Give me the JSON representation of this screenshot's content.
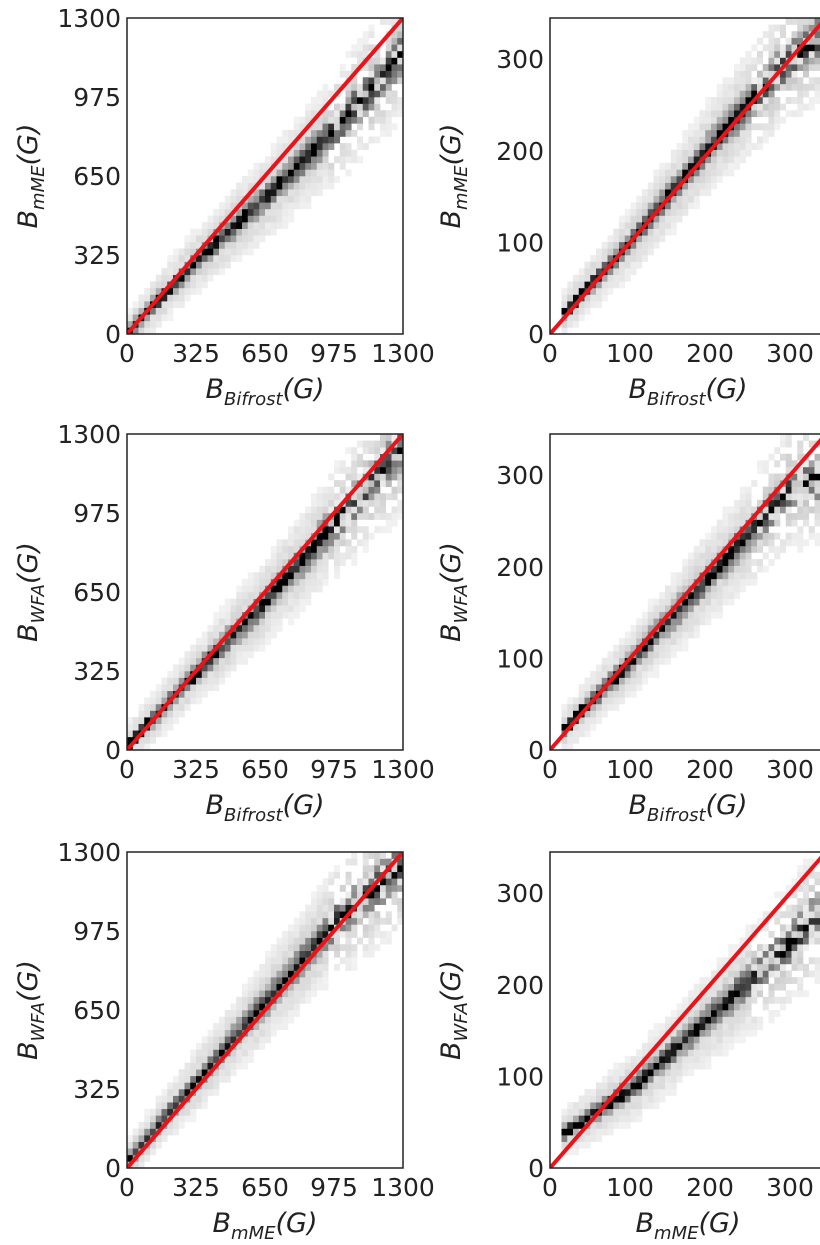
{
  "colors": {
    "identity_line": "#e8141a",
    "frame": "#222222",
    "cell_max": "#000000",
    "cell_min": "#ffffff"
  },
  "chart_data": [
    {
      "type": "heatmap",
      "title": "",
      "xlabel": {
        "symbol": "B",
        "subscript": "Bifrost",
        "unit": "(G)"
      },
      "ylabel": {
        "symbol": "B",
        "subscript": "mME",
        "unit": "(G)"
      },
      "xlim": [
        0,
        1300
      ],
      "ylim": [
        0,
        1300
      ],
      "xticks": [
        0,
        325,
        650,
        975,
        1300
      ],
      "yticks": [
        0,
        325,
        650,
        975,
        1300
      ],
      "grid": false,
      "reference_line": {
        "from": [
          0,
          0
        ],
        "to": [
          1300,
          1300
        ]
      },
      "density_ridge": {
        "x": [
          0,
          100,
          325,
          650,
          975,
          1200
        ],
        "y": [
          0,
          95,
          300,
          560,
          840,
          1060
        ]
      }
    },
    {
      "type": "heatmap",
      "title": "",
      "xlabel": {
        "symbol": "B",
        "subscript": "Bifrost",
        "unit": "(G)"
      },
      "ylabel": {
        "symbol": "B",
        "subscript": "mME",
        "unit": "(G)"
      },
      "xlim": [
        0,
        345
      ],
      "ylim": [
        0,
        345
      ],
      "xticks": [
        0,
        100,
        200,
        300
      ],
      "yticks": [
        0,
        100,
        200,
        300
      ],
      "grid": false,
      "reference_line": {
        "from": [
          0,
          0
        ],
        "to": [
          345,
          345
        ]
      },
      "density_ridge": {
        "x": [
          20,
          100,
          200,
          300,
          340
        ],
        "y": [
          25,
          100,
          205,
          300,
          325
        ]
      }
    },
    {
      "type": "heatmap",
      "title": "",
      "xlabel": {
        "symbol": "B",
        "subscript": "Bifrost",
        "unit": "(G)"
      },
      "ylabel": {
        "symbol": "B",
        "subscript": "WFA",
        "unit": "(G)"
      },
      "xlim": [
        0,
        1300
      ],
      "ylim": [
        0,
        1300
      ],
      "xticks": [
        0,
        325,
        650,
        975,
        1300
      ],
      "yticks": [
        0,
        325,
        650,
        975,
        1300
      ],
      "grid": false,
      "reference_line": {
        "from": [
          0,
          0
        ],
        "to": [
          1300,
          1300
        ]
      },
      "density_ridge": {
        "x": [
          0,
          100,
          325,
          650,
          975,
          1200
        ],
        "y": [
          20,
          110,
          315,
          610,
          930,
          1150
        ]
      }
    },
    {
      "type": "heatmap",
      "title": "",
      "xlabel": {
        "symbol": "B",
        "subscript": "Bifrost",
        "unit": "(G)"
      },
      "ylabel": {
        "symbol": "B",
        "subscript": "WFA",
        "unit": "(G)"
      },
      "xlim": [
        0,
        345
      ],
      "ylim": [
        0,
        345
      ],
      "xticks": [
        0,
        100,
        200,
        300
      ],
      "yticks": [
        0,
        100,
        200,
        300
      ],
      "grid": false,
      "reference_line": {
        "from": [
          0,
          0
        ],
        "to": [
          345,
          345
        ]
      },
      "density_ridge": {
        "x": [
          20,
          100,
          200,
          300,
          340
        ],
        "y": [
          25,
          95,
          190,
          285,
          300
        ]
      }
    },
    {
      "type": "heatmap",
      "title": "",
      "xlabel": {
        "symbol": "B",
        "subscript": "mME",
        "unit": "(G)"
      },
      "ylabel": {
        "symbol": "B",
        "subscript": "WFA",
        "unit": "(G)"
      },
      "xlim": [
        0,
        1300
      ],
      "ylim": [
        0,
        1300
      ],
      "xticks": [
        0,
        325,
        650,
        975,
        1300
      ],
      "yticks": [
        0,
        325,
        650,
        975,
        1300
      ],
      "grid": false,
      "reference_line": {
        "from": [
          0,
          0
        ],
        "to": [
          1300,
          1300
        ]
      },
      "density_ridge": {
        "x": [
          0,
          325,
          650,
          975,
          1300
        ],
        "y": [
          30,
          355,
          680,
          1005,
          1250
        ]
      }
    },
    {
      "type": "heatmap",
      "title": "",
      "xlabel": {
        "symbol": "B",
        "subscript": "mME",
        "unit": "(G)"
      },
      "ylabel": {
        "symbol": "B",
        "subscript": "WFA",
        "unit": "(G)"
      },
      "xlim": [
        0,
        345
      ],
      "ylim": [
        0,
        345
      ],
      "xticks": [
        0,
        100,
        200,
        300
      ],
      "yticks": [
        0,
        100,
        200,
        300
      ],
      "grid": false,
      "reference_line": {
        "from": [
          0,
          0
        ],
        "to": [
          345,
          345
        ]
      },
      "density_ridge": {
        "x": [
          20,
          100,
          200,
          300,
          345
        ],
        "y": [
          40,
          85,
          165,
          245,
          285
        ]
      }
    }
  ]
}
